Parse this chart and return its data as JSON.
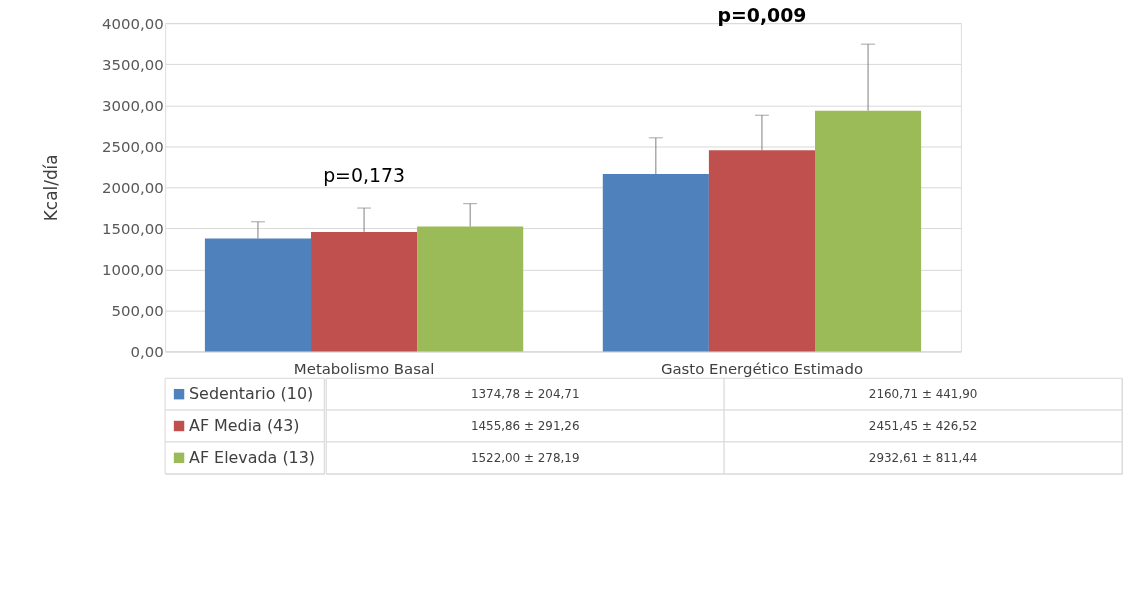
{
  "chart_data": {
    "type": "bar",
    "ylabel": "Kcal/día",
    "categories": [
      "Metabolismo Basal",
      "Gasto Energético Estimado"
    ],
    "series": [
      {
        "name": "Sedentario (10)",
        "color": "#4f81bd",
        "values": [
          1374.78,
          2160.71
        ],
        "errors": [
          [
            1374.78,
            1579.49
          ],
          [
            2160.71,
            2602.61
          ]
        ],
        "value_labels": [
          "1374,78 ± 204,71",
          "2160,71 ± 441,90"
        ]
      },
      {
        "name": "AF Media (43)",
        "color": "#c0504d",
        "values": [
          1455.86,
          2451.45
        ],
        "errors": [
          [
            1455.86,
            1747.12
          ],
          [
            2451.45,
            2877.97
          ]
        ],
        "value_labels": [
          "1455,86 ± 291,26",
          "2451,45 ± 426,52"
        ]
      },
      {
        "name": "AF Elevada (13)",
        "color": "#9bbb59",
        "values": [
          1522.0,
          2932.61
        ],
        "errors": [
          [
            1522.0,
            1800.19
          ],
          [
            2932.61,
            3744.05
          ]
        ],
        "value_labels": [
          "1522,00 ± 278,19",
          "2932,61 ± 811,44"
        ]
      }
    ],
    "ylim": [
      0,
      4000
    ],
    "yticks": [
      {
        "value": 0,
        "label": "0,00"
      },
      {
        "value": 500,
        "label": "500,00"
      },
      {
        "value": 1000,
        "label": "1000,00"
      },
      {
        "value": 1500,
        "label": "1500,00"
      },
      {
        "value": 2000,
        "label": "2000,00"
      },
      {
        "value": 2500,
        "label": "2500,00"
      },
      {
        "value": 3000,
        "label": "3000,00"
      },
      {
        "value": 3500,
        "label": "3500,00"
      },
      {
        "value": 4000,
        "label": "4000,00"
      }
    ],
    "annotations": [
      "p=0,173",
      "p=0,009"
    ],
    "grid": "y",
    "legend": "bottom"
  }
}
